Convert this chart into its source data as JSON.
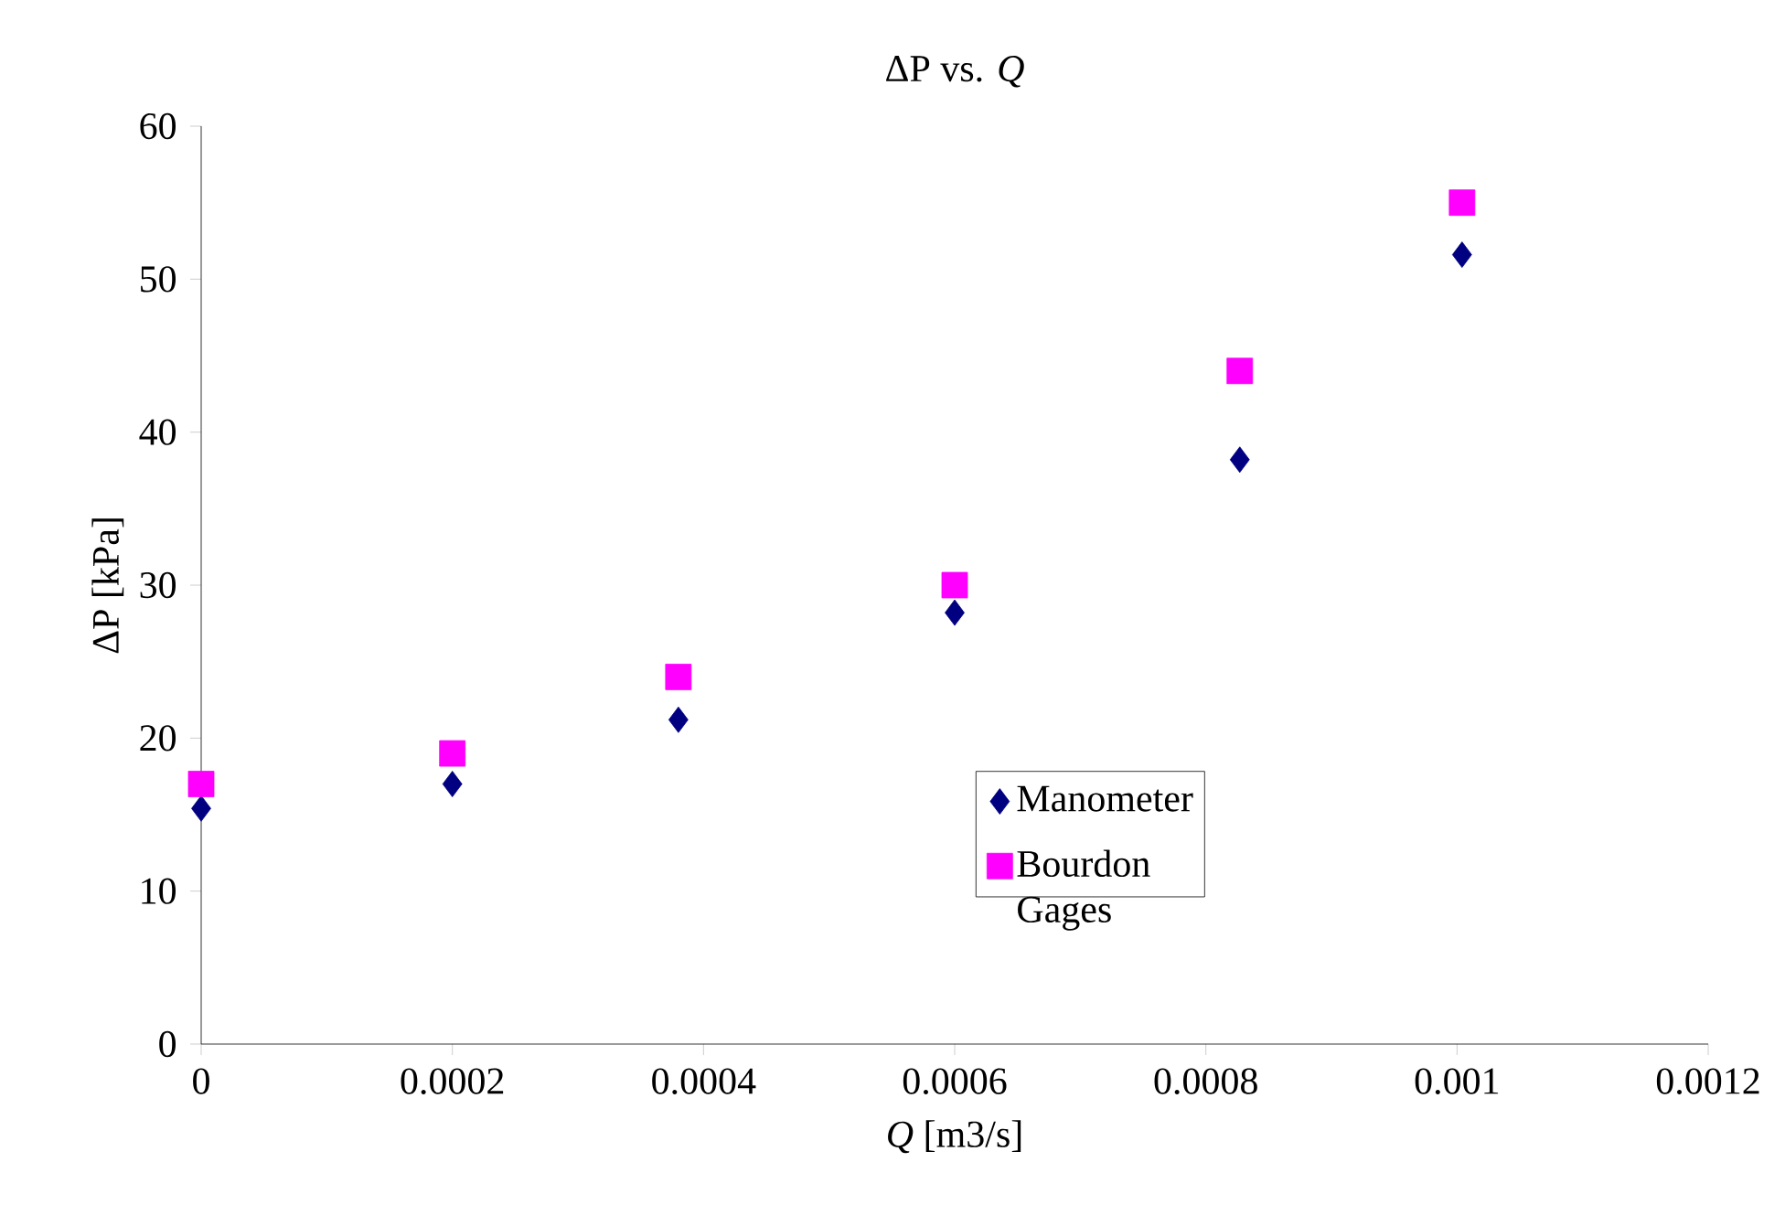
{
  "chart_data": {
    "type": "scatter",
    "title": "ΔP vs. *Q*",
    "xlabel": "*Q* [m3/s]",
    "ylabel": "ΔP [kPa]",
    "xlim": [
      0,
      0.0012
    ],
    "xticks": [
      0,
      0.0002,
      0.0004,
      0.0006,
      0.0008,
      0.001,
      0.0012
    ],
    "ylim": [
      0,
      60
    ],
    "yticks": [
      0,
      10,
      20,
      30,
      40,
      50,
      60
    ],
    "grid": false,
    "legend": "bottom center",
    "series": [
      {
        "name": "Manometer",
        "color": "#000080",
        "marker": "diamond",
        "x": [
          0,
          0.0002,
          0.00038,
          0.0006,
          0.000827,
          0.001004
        ],
        "values": [
          15.4,
          17.0,
          21.2,
          28.2,
          38.2,
          51.6
        ]
      },
      {
        "name": "Bourdon Gages",
        "color": "#ff00ff",
        "marker": "square",
        "x": [
          0,
          0.0002,
          0.00038,
          0.0006,
          0.000827,
          0.001004
        ],
        "values": [
          17.0,
          19.0,
          24.0,
          30.0,
          44.0,
          55.0
        ]
      }
    ]
  }
}
